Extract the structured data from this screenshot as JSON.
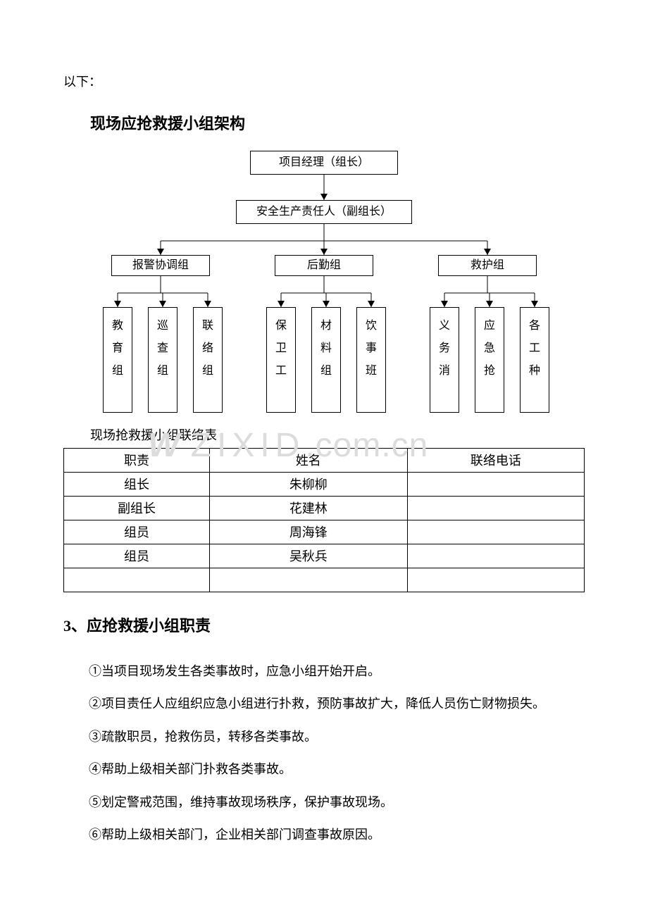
{
  "intro": "以下：",
  "heading_org": "现场应抢救援小组架构",
  "org": {
    "top1": "项目经理（组长）",
    "top2": "安全生产责任人（副组长）",
    "mids": [
      "报警协调组",
      "后勤组",
      "救护组"
    ],
    "leaves": [
      "教育组",
      "巡查组",
      "联络组",
      "保卫工",
      "材料组",
      "饮事班",
      "义务消",
      "应急抢",
      "各工种"
    ],
    "leaf_positions_x": [
      56,
      120,
      184,
      288,
      352,
      416,
      520,
      584,
      648
    ],
    "mid_centers_x": [
      138,
      370,
      602
    ],
    "colors": {
      "border": "#000000",
      "bg": "#ffffff",
      "text": "#000000"
    }
  },
  "table_caption": "现场抢救援小组联络表",
  "table": {
    "columns": [
      "职责",
      "姓名",
      "联络电话"
    ],
    "rows": [
      [
        "组长",
        "朱柳柳",
        ""
      ],
      [
        "副组长",
        "花建林",
        ""
      ],
      [
        "组员",
        "周海锋",
        ""
      ],
      [
        "组员",
        "吴秋兵",
        ""
      ],
      [
        "",
        "",
        ""
      ]
    ]
  },
  "heading_duties": "3、应抢救援小组职责",
  "duties": [
    "①当项目现场发生各类事故时，应急小组开始开启。",
    "②项目责任人应组织应急小组进行扑救，预防事故扩大，降低人员伤亡财物损失。",
    "③疏散职员，抢救伤员，转移各类事故。",
    "④帮助上级相关部门扑救各类事故。",
    "⑤划定警戒范围，维持事故现场秩序，保护事故现场。",
    "⑥帮助上级相关部门，企业相关部门调查事故原因。"
  ],
  "watermark": "W Z I X I D.COM.CD"
}
